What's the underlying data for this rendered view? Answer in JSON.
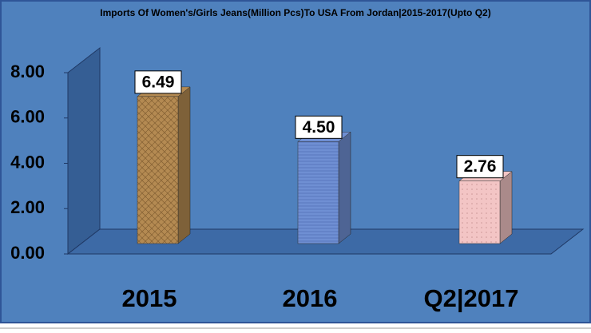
{
  "chart_data": {
    "type": "bar3d",
    "title": "Imports Of Women's/Girls Jeans(Million Pcs)To USA From Jordan|2015-2017(Upto Q2)",
    "categories": [
      "2015",
      "2016",
      "Q2|2017"
    ],
    "values": [
      6.49,
      4.5,
      2.76
    ],
    "value_labels": [
      "6.49",
      "4.50",
      "2.76"
    ],
    "colors": [
      "#b48a52",
      "#6f8fd3",
      "#f3c5c5"
    ],
    "ylim": [
      0,
      8
    ],
    "yticks": [
      {
        "value": 0,
        "label": "0.00"
      },
      {
        "value": 2,
        "label": "2.00"
      },
      {
        "value": 4,
        "label": "4.00"
      },
      {
        "value": 6,
        "label": "6.00"
      },
      {
        "value": 8,
        "label": "8.00"
      }
    ],
    "grid": false
  }
}
